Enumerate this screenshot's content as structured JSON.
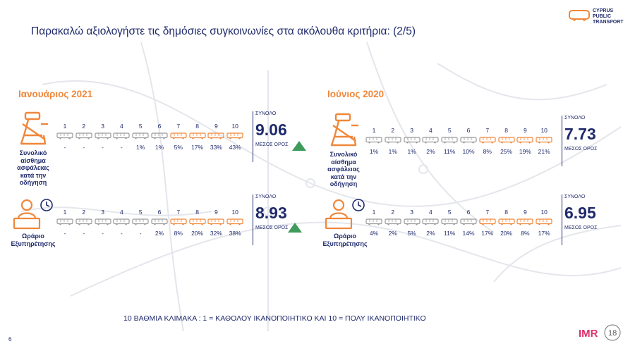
{
  "title": "Παρακαλώ αξιολογήστε τις δημόσιες συγκοινωνίες στα ακόλουθα κριτήρια: (2/5)",
  "logo": {
    "line1": "CYPRUS",
    "line2": "PUBLIC",
    "line3": "TRANSPORT"
  },
  "colors": {
    "navy": "#1f2a6b",
    "orange": "#f0873a",
    "grey": "#9a9a9a",
    "green": "#3f9b5c"
  },
  "periods": {
    "left": "Ιανουάριος 2021",
    "right": "Ιούνιος 2020"
  },
  "scale_numbers": [
    "1",
    "2",
    "3",
    "4",
    "5",
    "6",
    "7",
    "8",
    "9",
    "10"
  ],
  "labels": {
    "safety": [
      "Συνολικό",
      "αίσθημα",
      "ασφάλειας",
      "κατά την",
      "οδήγηση"
    ],
    "schedule": [
      "Ωράριο",
      "Εξυπηρέτησης"
    ]
  },
  "score_labels": {
    "total": "ΣΥΝΟΛΟ",
    "mean": "ΜΕΣΟΣ ΟΡΟΣ"
  },
  "jan2021": {
    "safety": {
      "pcts": [
        "-",
        "-",
        "-",
        "-",
        "1%",
        "1%",
        "5%",
        "17%",
        "33%",
        "43%"
      ],
      "total": "9.06"
    },
    "schedule": {
      "pcts": [
        "-",
        "-",
        "-",
        "-",
        "-",
        "2%",
        "8%",
        "20%",
        "32%",
        "38%"
      ],
      "total": "8.93"
    }
  },
  "jun2020": {
    "safety": {
      "pcts": [
        "1%",
        "1%",
        "1%",
        "2%",
        "11%",
        "10%",
        "8%",
        "25%",
        "19%",
        "21%"
      ],
      "total": "7.73"
    },
    "schedule": {
      "pcts": [
        "4%",
        "2%",
        "5%",
        "2%",
        "11%",
        "14%",
        "17%",
        "20%",
        "8%",
        "17%"
      ],
      "total": "6.95"
    }
  },
  "footer": "10 ΒΑΘΜΙΑ ΚΛΙΜΑΚΑ : 1 = ΚΑΘΟΛΟΥ ΙΚΑΝΟΠΟΙΗΤΙΚΟ ΚΑΙ 10 = ΠΟΛΥ ΙΚΑΝΟΠΟΙΗΤΙΚΟ",
  "page_number": "6",
  "imr_logo": {
    "text": "IMR",
    "badge": "18"
  }
}
